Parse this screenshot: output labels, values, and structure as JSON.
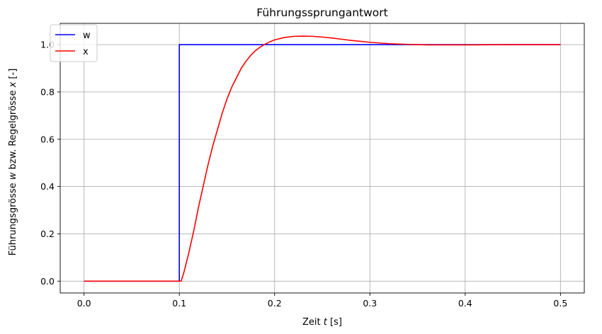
{
  "chart_data": {
    "type": "line",
    "title": "Führungssprungantwort",
    "xlabel": {
      "prefix": "Zeit ",
      "var": "t",
      "suffix": " [s]"
    },
    "ylabel": {
      "p1": "Führungsgrösse ",
      "v1": "w",
      "p2": " bzw. Regelgrösse ",
      "v2": "x",
      "p3": " [-]"
    },
    "xlim": [
      -0.025,
      0.525
    ],
    "ylim": [
      -0.05,
      1.09
    ],
    "xticks": [
      0.0,
      0.1,
      0.2,
      0.3,
      0.4,
      0.5
    ],
    "xtick_labels": [
      "0.0",
      "0.1",
      "0.2",
      "0.3",
      "0.4",
      "0.5"
    ],
    "yticks": [
      0.0,
      0.2,
      0.4,
      0.6,
      0.8,
      1.0
    ],
    "ytick_labels": [
      "0.0",
      "0.2",
      "0.4",
      "0.6",
      "0.8",
      "1.0"
    ],
    "grid": true,
    "legend_position": "upper-left",
    "series": [
      {
        "name": "w",
        "color": "#0000ff",
        "x": [
          0.0,
          0.1,
          0.1,
          0.101,
          0.5
        ],
        "y": [
          0.0,
          0.0,
          1.0,
          1.0,
          1.0
        ]
      },
      {
        "name": "x",
        "color": "#ff0000",
        "x": [
          0.0,
          0.1,
          0.102,
          0.105,
          0.11,
          0.115,
          0.12,
          0.125,
          0.13,
          0.135,
          0.14,
          0.145,
          0.15,
          0.155,
          0.16,
          0.165,
          0.17,
          0.175,
          0.18,
          0.185,
          0.19,
          0.195,
          0.2,
          0.21,
          0.22,
          0.23,
          0.24,
          0.25,
          0.26,
          0.27,
          0.28,
          0.3,
          0.32,
          0.34,
          0.36,
          0.38,
          0.4,
          0.45,
          0.5
        ],
        "y": [
          0.0,
          0.0,
          0.0,
          0.04,
          0.12,
          0.21,
          0.31,
          0.4,
          0.49,
          0.57,
          0.64,
          0.71,
          0.77,
          0.82,
          0.86,
          0.9,
          0.93,
          0.955,
          0.975,
          0.99,
          1.002,
          1.012,
          1.02,
          1.03,
          1.035,
          1.036,
          1.035,
          1.032,
          1.028,
          1.023,
          1.018,
          1.01,
          1.004,
          1.001,
          0.999,
          0.999,
          0.999,
          1.0,
          1.0
        ]
      }
    ]
  }
}
